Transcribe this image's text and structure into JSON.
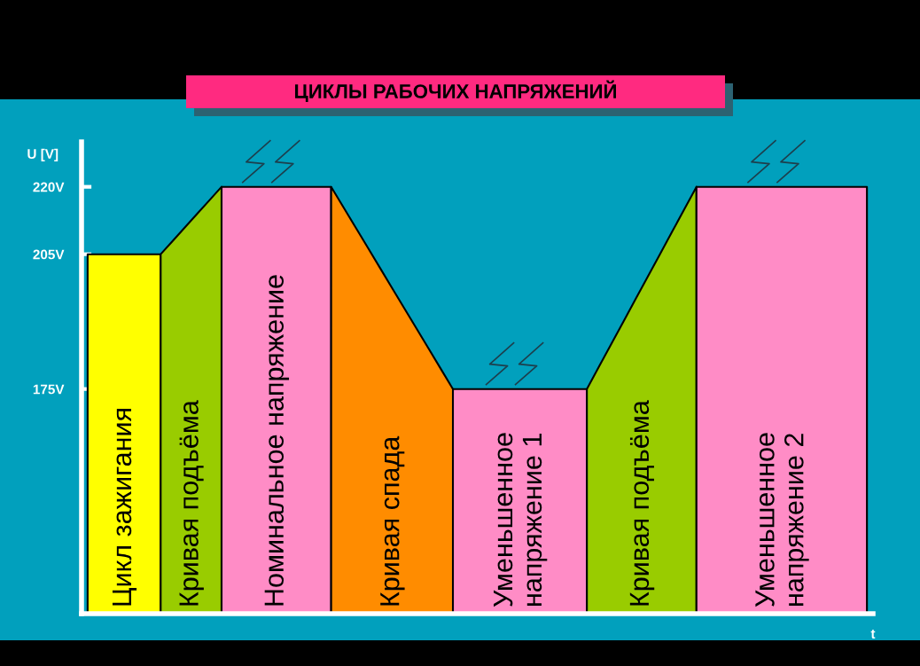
{
  "chart_data": {
    "type": "area",
    "title": "ЦИКЛЫ РАБОЧИХ НАПРЯЖЕНИЙ",
    "ylabel": "U [V]",
    "xlabel": "t",
    "categories": [
      null,
      null,
      null,
      null,
      null,
      null,
      null,
      null,
      null,
      null,
      null,
      null,
      null,
      null,
      null,
      null,
      null,
      null,
      null,
      null,
      null,
      null,
      null,
      null,
      null,
      null,
      null,
      null,
      null,
      null,
      null,
      null,
      null,
      null,
      null,
      null,
      null,
      null,
      null,
      null,
      null,
      null,
      null,
      null,
      null,
      null,
      null,
      null,
      null,
      null,
      null,
      null,
      null,
      null,
      null,
      null,
      null,
      null,
      null,
      null,
      null,
      null,
      null,
      null,
      null
    ],
    "ylim": [
      125,
      230
    ],
    "yticks": [
      {
        "value": 175,
        "label": "175V"
      },
      {
        "value": 205,
        "label": "205V"
      },
      {
        "value": 220,
        "label": "220V"
      }
    ],
    "series": [
      {
        "name": "Цикл зажигания",
        "color": "#ffff00",
        "values": [
          205,
          205,
          205,
          205,
          205,
          205,
          205,
          null,
          null,
          null,
          null,
          null,
          null,
          null,
          null,
          null,
          null,
          null,
          null,
          null,
          null,
          null,
          null,
          null,
          null,
          null,
          null,
          null,
          null,
          null,
          null,
          null,
          null,
          null,
          null,
          null,
          null,
          null,
          null,
          null,
          null,
          null,
          null,
          null,
          null,
          null,
          null,
          null,
          null,
          null,
          null,
          null,
          null,
          null,
          null,
          null,
          null,
          null,
          null,
          null,
          null,
          null,
          null,
          null,
          null
        ]
      },
      {
        "name": "Кривая подъёма",
        "color": "#99cc00",
        "values": [
          null,
          null,
          null,
          null,
          null,
          null,
          205,
          208,
          211,
          214,
          217,
          220,
          null,
          null,
          null,
          null,
          null,
          null,
          null,
          null,
          null,
          null,
          null,
          null,
          null,
          null,
          null,
          null,
          null,
          null,
          null,
          null,
          null,
          null,
          null,
          null,
          null,
          null,
          null,
          null,
          null,
          null,
          null,
          null,
          null,
          null,
          null,
          null,
          null,
          null,
          null,
          null,
          null,
          null,
          null,
          null,
          null,
          null,
          null,
          null,
          null,
          null,
          null,
          null,
          null
        ]
      },
      {
        "name": "Номинальное напряжение",
        "color": "#ff8cc6",
        "values": [
          null,
          null,
          null,
          null,
          null,
          null,
          null,
          null,
          null,
          null,
          null,
          220,
          220,
          220,
          220,
          220,
          220,
          220,
          220,
          220,
          220,
          null,
          null,
          null,
          null,
          null,
          null,
          null,
          null,
          null,
          null,
          null,
          null,
          null,
          null,
          null,
          null,
          null,
          null,
          null,
          null,
          null,
          null,
          null,
          null,
          null,
          null,
          null,
          null,
          null,
          null,
          null,
          null,
          null,
          null,
          null,
          null,
          null,
          null,
          null,
          null,
          null,
          null,
          null,
          null
        ]
      },
      {
        "name": "Кривая спада",
        "color": "#ff8c00",
        "values": [
          null,
          null,
          null,
          null,
          null,
          null,
          null,
          null,
          null,
          null,
          null,
          null,
          null,
          null,
          null,
          null,
          null,
          null,
          null,
          null,
          220,
          215.5,
          211,
          206.5,
          202,
          197.5,
          193,
          188.5,
          184,
          179.5,
          175,
          null,
          null,
          null,
          null,
          null,
          null,
          null,
          null,
          null,
          null,
          null,
          null,
          null,
          null,
          null,
          null,
          null,
          null,
          null,
          null,
          null,
          null,
          null,
          null,
          null,
          null,
          null,
          null,
          null,
          null,
          null,
          null,
          null,
          null
        ]
      },
      {
        "name": "Уменьшенное\nнапряжение 1",
        "color": "#ff8cc6",
        "values": [
          null,
          null,
          null,
          null,
          null,
          null,
          null,
          null,
          null,
          null,
          null,
          null,
          null,
          null,
          null,
          null,
          null,
          null,
          null,
          null,
          null,
          null,
          null,
          null,
          null,
          null,
          null,
          null,
          null,
          null,
          175,
          175,
          175,
          175,
          175,
          175,
          175,
          175,
          175,
          175,
          175,
          175,
          null,
          null,
          null,
          null,
          null,
          null,
          null,
          null,
          null,
          null,
          null,
          null,
          null,
          null,
          null,
          null,
          null,
          null,
          null,
          null,
          null,
          null,
          null
        ]
      },
      {
        "name": "Кривая подъёма",
        "color": "#99cc00",
        "values": [
          null,
          null,
          null,
          null,
          null,
          null,
          null,
          null,
          null,
          null,
          null,
          null,
          null,
          null,
          null,
          null,
          null,
          null,
          null,
          null,
          null,
          null,
          null,
          null,
          null,
          null,
          null,
          null,
          null,
          null,
          null,
          null,
          null,
          null,
          null,
          null,
          null,
          null,
          null,
          null,
          null,
          175,
          180,
          185,
          190,
          195,
          200,
          205,
          210,
          215,
          220,
          null,
          null,
          null,
          null,
          null,
          null,
          null,
          null,
          null,
          null,
          null,
          null,
          null,
          null
        ]
      },
      {
        "name": "Уменьшенное\nнапряжение 2",
        "color": "#ff8cc6",
        "values": [
          null,
          null,
          null,
          null,
          null,
          null,
          null,
          null,
          null,
          null,
          null,
          null,
          null,
          null,
          null,
          null,
          null,
          null,
          null,
          null,
          null,
          null,
          null,
          null,
          null,
          null,
          null,
          null,
          null,
          null,
          null,
          null,
          null,
          null,
          null,
          null,
          null,
          null,
          null,
          null,
          null,
          null,
          null,
          null,
          null,
          null,
          null,
          null,
          null,
          null,
          220,
          220,
          220,
          220,
          220,
          220,
          220,
          220,
          220,
          220,
          220,
          220,
          220,
          220,
          220
        ]
      }
    ]
  }
}
